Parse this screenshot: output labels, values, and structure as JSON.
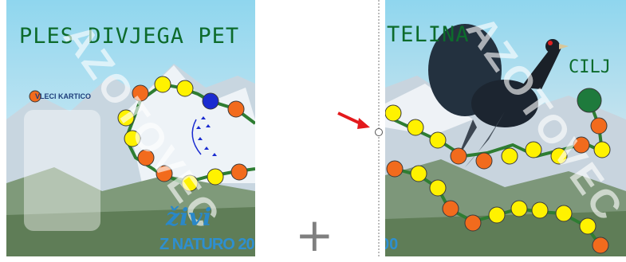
{
  "left_board": {
    "title": "PLES DIVJEGA PET",
    "draw_card_label": "VLECI KARTICO",
    "brand_script": "živi",
    "brand_text": "Z NATURO 20",
    "watermark": "AZOTOVEC"
  },
  "right_board": {
    "title": "TELINA",
    "goal_label": "CILJ",
    "brand_text": "00",
    "watermark": "AZOTOVEC"
  },
  "plus_symbol": "+",
  "colors": {
    "path_green": "#2e7d32",
    "space_orange": "#f26b1d",
    "space_yellow": "#fff200",
    "space_blue": "#1a2bd0",
    "goal_green": "#1e7a3c",
    "title_green": "#0d6b2c",
    "arrow_red": "#e3191c"
  }
}
